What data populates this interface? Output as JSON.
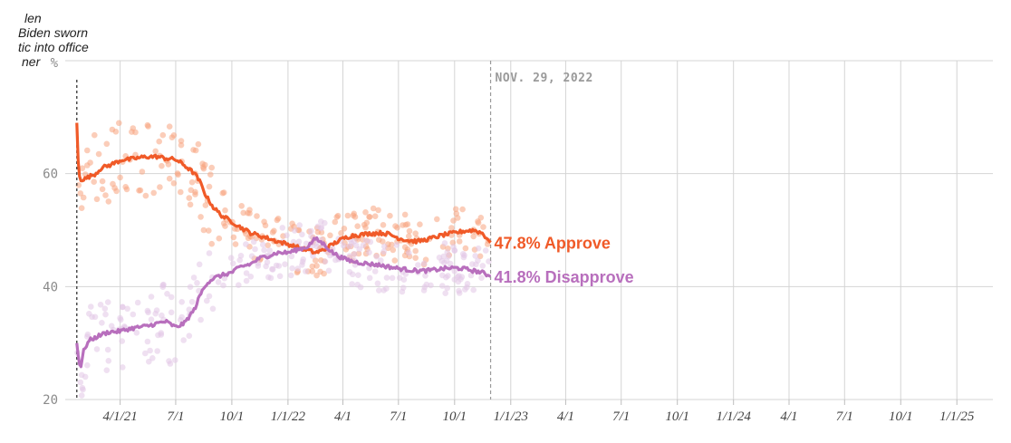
{
  "chart_data": {
    "type": "line",
    "title": "",
    "xlabel": "",
    "ylabel": "",
    "ylim": [
      20,
      80
    ],
    "x_range": [
      "2021-01-01",
      "2025-03-01"
    ],
    "y_ticks": [
      {
        "value": 20,
        "label": "20"
      },
      {
        "value": 40,
        "label": "40"
      },
      {
        "value": 60,
        "label": "60"
      }
    ],
    "y_top_label": "%",
    "x_ticks": [
      {
        "date": "2021-04-01",
        "label": "4/1/21"
      },
      {
        "date": "2021-07-01",
        "label": "7/1"
      },
      {
        "date": "2021-10-01",
        "label": "10/1"
      },
      {
        "date": "2022-01-01",
        "label": "1/1/22"
      },
      {
        "date": "2022-04-01",
        "label": "4/1"
      },
      {
        "date": "2022-07-01",
        "label": "7/1"
      },
      {
        "date": "2022-10-01",
        "label": "10/1"
      },
      {
        "date": "2023-01-01",
        "label": "1/1/23"
      },
      {
        "date": "2023-04-01",
        "label": "4/1"
      },
      {
        "date": "2023-07-01",
        "label": "7/1"
      },
      {
        "date": "2023-10-01",
        "label": "10/1"
      },
      {
        "date": "2024-01-01",
        "label": "1/1/24"
      },
      {
        "date": "2024-04-01",
        "label": "4/1"
      },
      {
        "date": "2024-07-01",
        "label": "7/1"
      },
      {
        "date": "2024-10-01",
        "label": "10/1"
      },
      {
        "date": "2025-01-01",
        "label": "1/1/25"
      }
    ],
    "grid": true,
    "events": [
      {
        "date": "2021-01-20",
        "lines": [
          "len",
          "Biden sworn",
          "tic into office",
          "ner"
        ]
      },
      {
        "date": "2022-11-29",
        "label": "NOV. 29, 2022"
      }
    ],
    "series": [
      {
        "name": "Approve",
        "color": "#f05a28",
        "dot_color": "#f8a47f",
        "end_value": "47.8%",
        "x": [
          "2021-01-20",
          "2021-01-23",
          "2021-01-26",
          "2021-02-01",
          "2021-02-10",
          "2021-02-20",
          "2021-03-01",
          "2021-03-15",
          "2021-03-25",
          "2021-04-05",
          "2021-04-15",
          "2021-05-01",
          "2021-05-15",
          "2021-06-01",
          "2021-06-15",
          "2021-07-01",
          "2021-07-15",
          "2021-08-01",
          "2021-08-10",
          "2021-08-20",
          "2021-09-01",
          "2021-09-15",
          "2021-10-01",
          "2021-10-15",
          "2021-11-01",
          "2021-11-15",
          "2021-12-01",
          "2021-12-15",
          "2022-01-01",
          "2022-01-15",
          "2022-02-01",
          "2022-02-15",
          "2022-03-01",
          "2022-03-15",
          "2022-04-01",
          "2022-04-15",
          "2022-05-01",
          "2022-05-15",
          "2022-06-01",
          "2022-06-15",
          "2022-07-01",
          "2022-07-15",
          "2022-08-01",
          "2022-08-15",
          "2022-09-01",
          "2022-09-15",
          "2022-10-01",
          "2022-10-15",
          "2022-11-01",
          "2022-11-15",
          "2022-11-29"
        ],
        "values": [
          69,
          60,
          59,
          59,
          59.5,
          60,
          61,
          61.5,
          62,
          62.5,
          62.5,
          62.8,
          63,
          63,
          62.7,
          62.5,
          61.5,
          60,
          58.5,
          56,
          54,
          52.5,
          51.5,
          50.5,
          49.5,
          49,
          48.5,
          48,
          47.5,
          47,
          46.5,
          46,
          46.5,
          47.5,
          48.5,
          49,
          49.2,
          49.4,
          49.5,
          49.3,
          48.6,
          48.2,
          48,
          48.3,
          48.8,
          49.2,
          49.5,
          49.8,
          50,
          49.5,
          47.8
        ]
      },
      {
        "name": "Disapprove",
        "color": "#b86fbd",
        "dot_color": "#e2c6e6",
        "end_value": "41.8%",
        "x": [
          "2021-01-20",
          "2021-01-23",
          "2021-01-26",
          "2021-02-01",
          "2021-02-10",
          "2021-02-20",
          "2021-03-01",
          "2021-03-15",
          "2021-03-25",
          "2021-04-05",
          "2021-04-15",
          "2021-05-01",
          "2021-05-15",
          "2021-06-01",
          "2021-06-15",
          "2021-07-01",
          "2021-07-15",
          "2021-08-01",
          "2021-08-10",
          "2021-08-20",
          "2021-09-01",
          "2021-09-15",
          "2021-10-01",
          "2021-10-15",
          "2021-11-01",
          "2021-11-15",
          "2021-12-01",
          "2021-12-15",
          "2022-01-01",
          "2022-01-15",
          "2022-02-01",
          "2022-02-15",
          "2022-03-01",
          "2022-03-15",
          "2022-04-01",
          "2022-04-15",
          "2022-05-01",
          "2022-05-15",
          "2022-06-01",
          "2022-06-15",
          "2022-07-01",
          "2022-07-15",
          "2022-08-01",
          "2022-08-15",
          "2022-09-01",
          "2022-09-15",
          "2022-10-01",
          "2022-10-15",
          "2022-11-01",
          "2022-11-15",
          "2022-11-29"
        ],
        "values": [
          30,
          27,
          25.5,
          29,
          30.5,
          31,
          31.5,
          32,
          32,
          32.2,
          32.5,
          32.8,
          33,
          33.5,
          33.8,
          32.8,
          33.5,
          36,
          38.5,
          40.5,
          41.5,
          42,
          42.5,
          43.5,
          44,
          45,
          45.5,
          46,
          46,
          46.5,
          47,
          48.5,
          47.5,
          46,
          45,
          44.5,
          44.2,
          44,
          43.8,
          43.5,
          43.2,
          43,
          42.8,
          42.8,
          43,
          43.2,
          43.3,
          43.2,
          42.8,
          42.5,
          41.8
        ]
      }
    ]
  }
}
